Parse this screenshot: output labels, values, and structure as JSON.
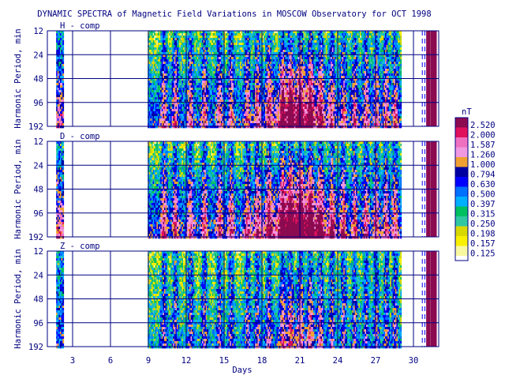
{
  "chart_data": {
    "type": "heatmap",
    "title": "DYNAMIC SPECTRA of Magnetic Field Variations in MOSCOW Observatory for OCT 1998",
    "xlabel": "Days",
    "ylabel": "Harmonic Period, min",
    "x_ticks": [
      "3",
      "6",
      "9",
      "12",
      "15",
      "18",
      "21",
      "24",
      "27",
      "30"
    ],
    "x_tick_values": [
      3,
      6,
      9,
      12,
      15,
      18,
      21,
      24,
      27,
      30
    ],
    "xlim": [
      1,
      32
    ],
    "y_ticks": [
      "12",
      "24",
      "48",
      "96",
      "192"
    ],
    "y_tick_values": [
      12,
      24,
      48,
      96,
      192
    ],
    "ylim": [
      12,
      192
    ],
    "y_scale": "log",
    "panels": [
      {
        "label": "H - comp",
        "intensity": 0.85
      },
      {
        "label": "D - comp",
        "intensity": 1.0
      },
      {
        "label": "Z - comp",
        "intensity": 0.45
      }
    ],
    "data_coverage_days": [
      [
        1.7,
        2.25
      ],
      [
        8.95,
        29.0
      ]
    ],
    "day_markers": [
      30.7,
      30.9
    ],
    "band_markers": [
      31.1,
      31.25,
      31.45,
      31.6,
      31.75
    ],
    "colorbar": {
      "unit": "nT",
      "levels": [
        "2.520",
        "2.000",
        "1.587",
        "1.260",
        "1.000",
        "0.794",
        "0.630",
        "0.500",
        "0.397",
        "0.315",
        "0.250",
        "0.198",
        "0.157",
        "0.125"
      ],
      "colors": [
        "#8b0a50",
        "#e0105a",
        "#f070c0",
        "#f098e0",
        "#f0a030",
        "#0000a0",
        "#0000ff",
        "#0070ff",
        "#00b0ff",
        "#00c060",
        "#30c8a0",
        "#d8d800",
        "#f8f000",
        "#f8f8a0"
      ]
    }
  }
}
